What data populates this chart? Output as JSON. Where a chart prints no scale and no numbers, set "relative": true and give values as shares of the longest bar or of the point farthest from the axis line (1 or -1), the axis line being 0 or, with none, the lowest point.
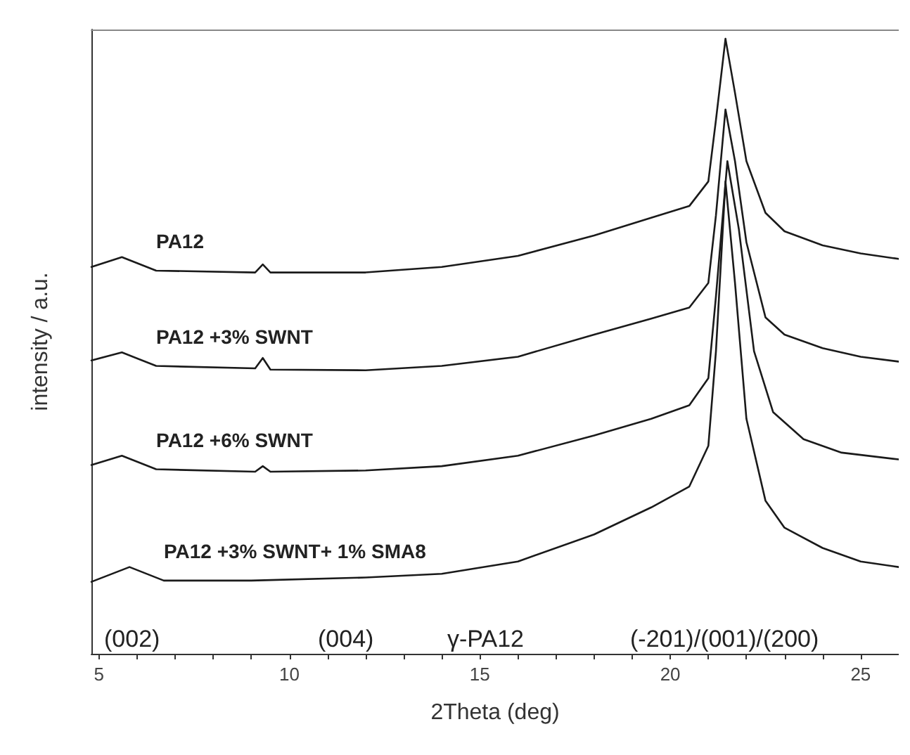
{
  "chart_data": {
    "type": "line",
    "relative": true,
    "xlabel": "2Theta (deg)",
    "ylabel": "intensity / a.u.",
    "xlim": [
      4.8,
      26
    ],
    "xticks": [
      5,
      {
        "value": 6,
        "label": null
      },
      {
        "value": 7,
        "label": null
      },
      {
        "value": 8,
        "label": null
      },
      {
        "value": 9,
        "label": null
      },
      10,
      {
        "value": 11,
        "label": null
      },
      {
        "value": 12,
        "label": null
      },
      {
        "value": 13,
        "label": null
      },
      {
        "value": 14,
        "label": null
      },
      15,
      {
        "value": 16,
        "label": null
      },
      {
        "value": 17,
        "label": null
      },
      {
        "value": 18,
        "label": null
      },
      {
        "value": 19,
        "label": null
      },
      20,
      {
        "value": 21,
        "label": null
      },
      {
        "value": 22,
        "label": null
      },
      {
        "value": 23,
        "label": null
      },
      {
        "value": 24,
        "label": null
      },
      25
    ],
    "grid": false,
    "legend": false,
    "marker": "none",
    "line_style": "solid",
    "series": [
      {
        "name": "PA12",
        "color": "#1a1a1a",
        "x": [
          4.8,
          5.6,
          6.5,
          9.1,
          9.3,
          9.5,
          12,
          14,
          16,
          18,
          19.5,
          20.5,
          21,
          21.2,
          21.45,
          21.7,
          22,
          22.5,
          23,
          24,
          25,
          26
        ],
        "values": [
          0.629,
          0.645,
          0.623,
          0.62,
          0.633,
          0.62,
          0.62,
          0.629,
          0.647,
          0.68,
          0.709,
          0.728,
          0.768,
          0.868,
          1.0,
          0.912,
          0.801,
          0.717,
          0.687,
          0.664,
          0.651,
          0.642
        ]
      },
      {
        "name": "PA12 +3% SWNT",
        "color": "#1a1a1a",
        "x": [
          4.8,
          5.6,
          6.5,
          9.1,
          9.3,
          9.5,
          12,
          14,
          16,
          18,
          19.5,
          20.5,
          21,
          21.2,
          21.45,
          21.7,
          22,
          22.5,
          23,
          24,
          25,
          26
        ],
        "values": [
          0.477,
          0.49,
          0.468,
          0.464,
          0.481,
          0.462,
          0.461,
          0.468,
          0.483,
          0.519,
          0.545,
          0.563,
          0.603,
          0.713,
          0.885,
          0.801,
          0.669,
          0.547,
          0.519,
          0.497,
          0.483,
          0.475
        ]
      },
      {
        "name": "PA12 +6% SWNT",
        "color": "#1a1a1a",
        "x": [
          4.8,
          5.6,
          6.5,
          9.1,
          9.3,
          9.5,
          12,
          14,
          16,
          18,
          19.5,
          20.5,
          21,
          21.2,
          21.5,
          21.8,
          22.2,
          22.7,
          23.5,
          24.5,
          26
        ],
        "values": [
          0.307,
          0.322,
          0.3,
          0.296,
          0.305,
          0.296,
          0.298,
          0.305,
          0.322,
          0.355,
          0.382,
          0.404,
          0.448,
          0.581,
          0.801,
          0.691,
          0.492,
          0.393,
          0.349,
          0.327,
          0.316
        ]
      },
      {
        "name": "PA12 +3% SWNT+ 1% SMA8",
        "color": "#1a1a1a",
        "x": [
          4.8,
          5.8,
          6.7,
          9,
          12,
          14,
          16,
          18,
          19.5,
          20.5,
          21,
          21.2,
          21.45,
          21.7,
          22,
          22.5,
          23,
          24,
          25,
          26
        ],
        "values": [
          0.117,
          0.141,
          0.119,
          0.119,
          0.124,
          0.13,
          0.15,
          0.194,
          0.238,
          0.272,
          0.338,
          0.492,
          0.768,
          0.603,
          0.382,
          0.249,
          0.205,
          0.172,
          0.15,
          0.141
        ]
      }
    ],
    "annotations": [
      "(002)",
      "(004)",
      "γ-PA12",
      "(-201)/(001)/(200)"
    ]
  }
}
